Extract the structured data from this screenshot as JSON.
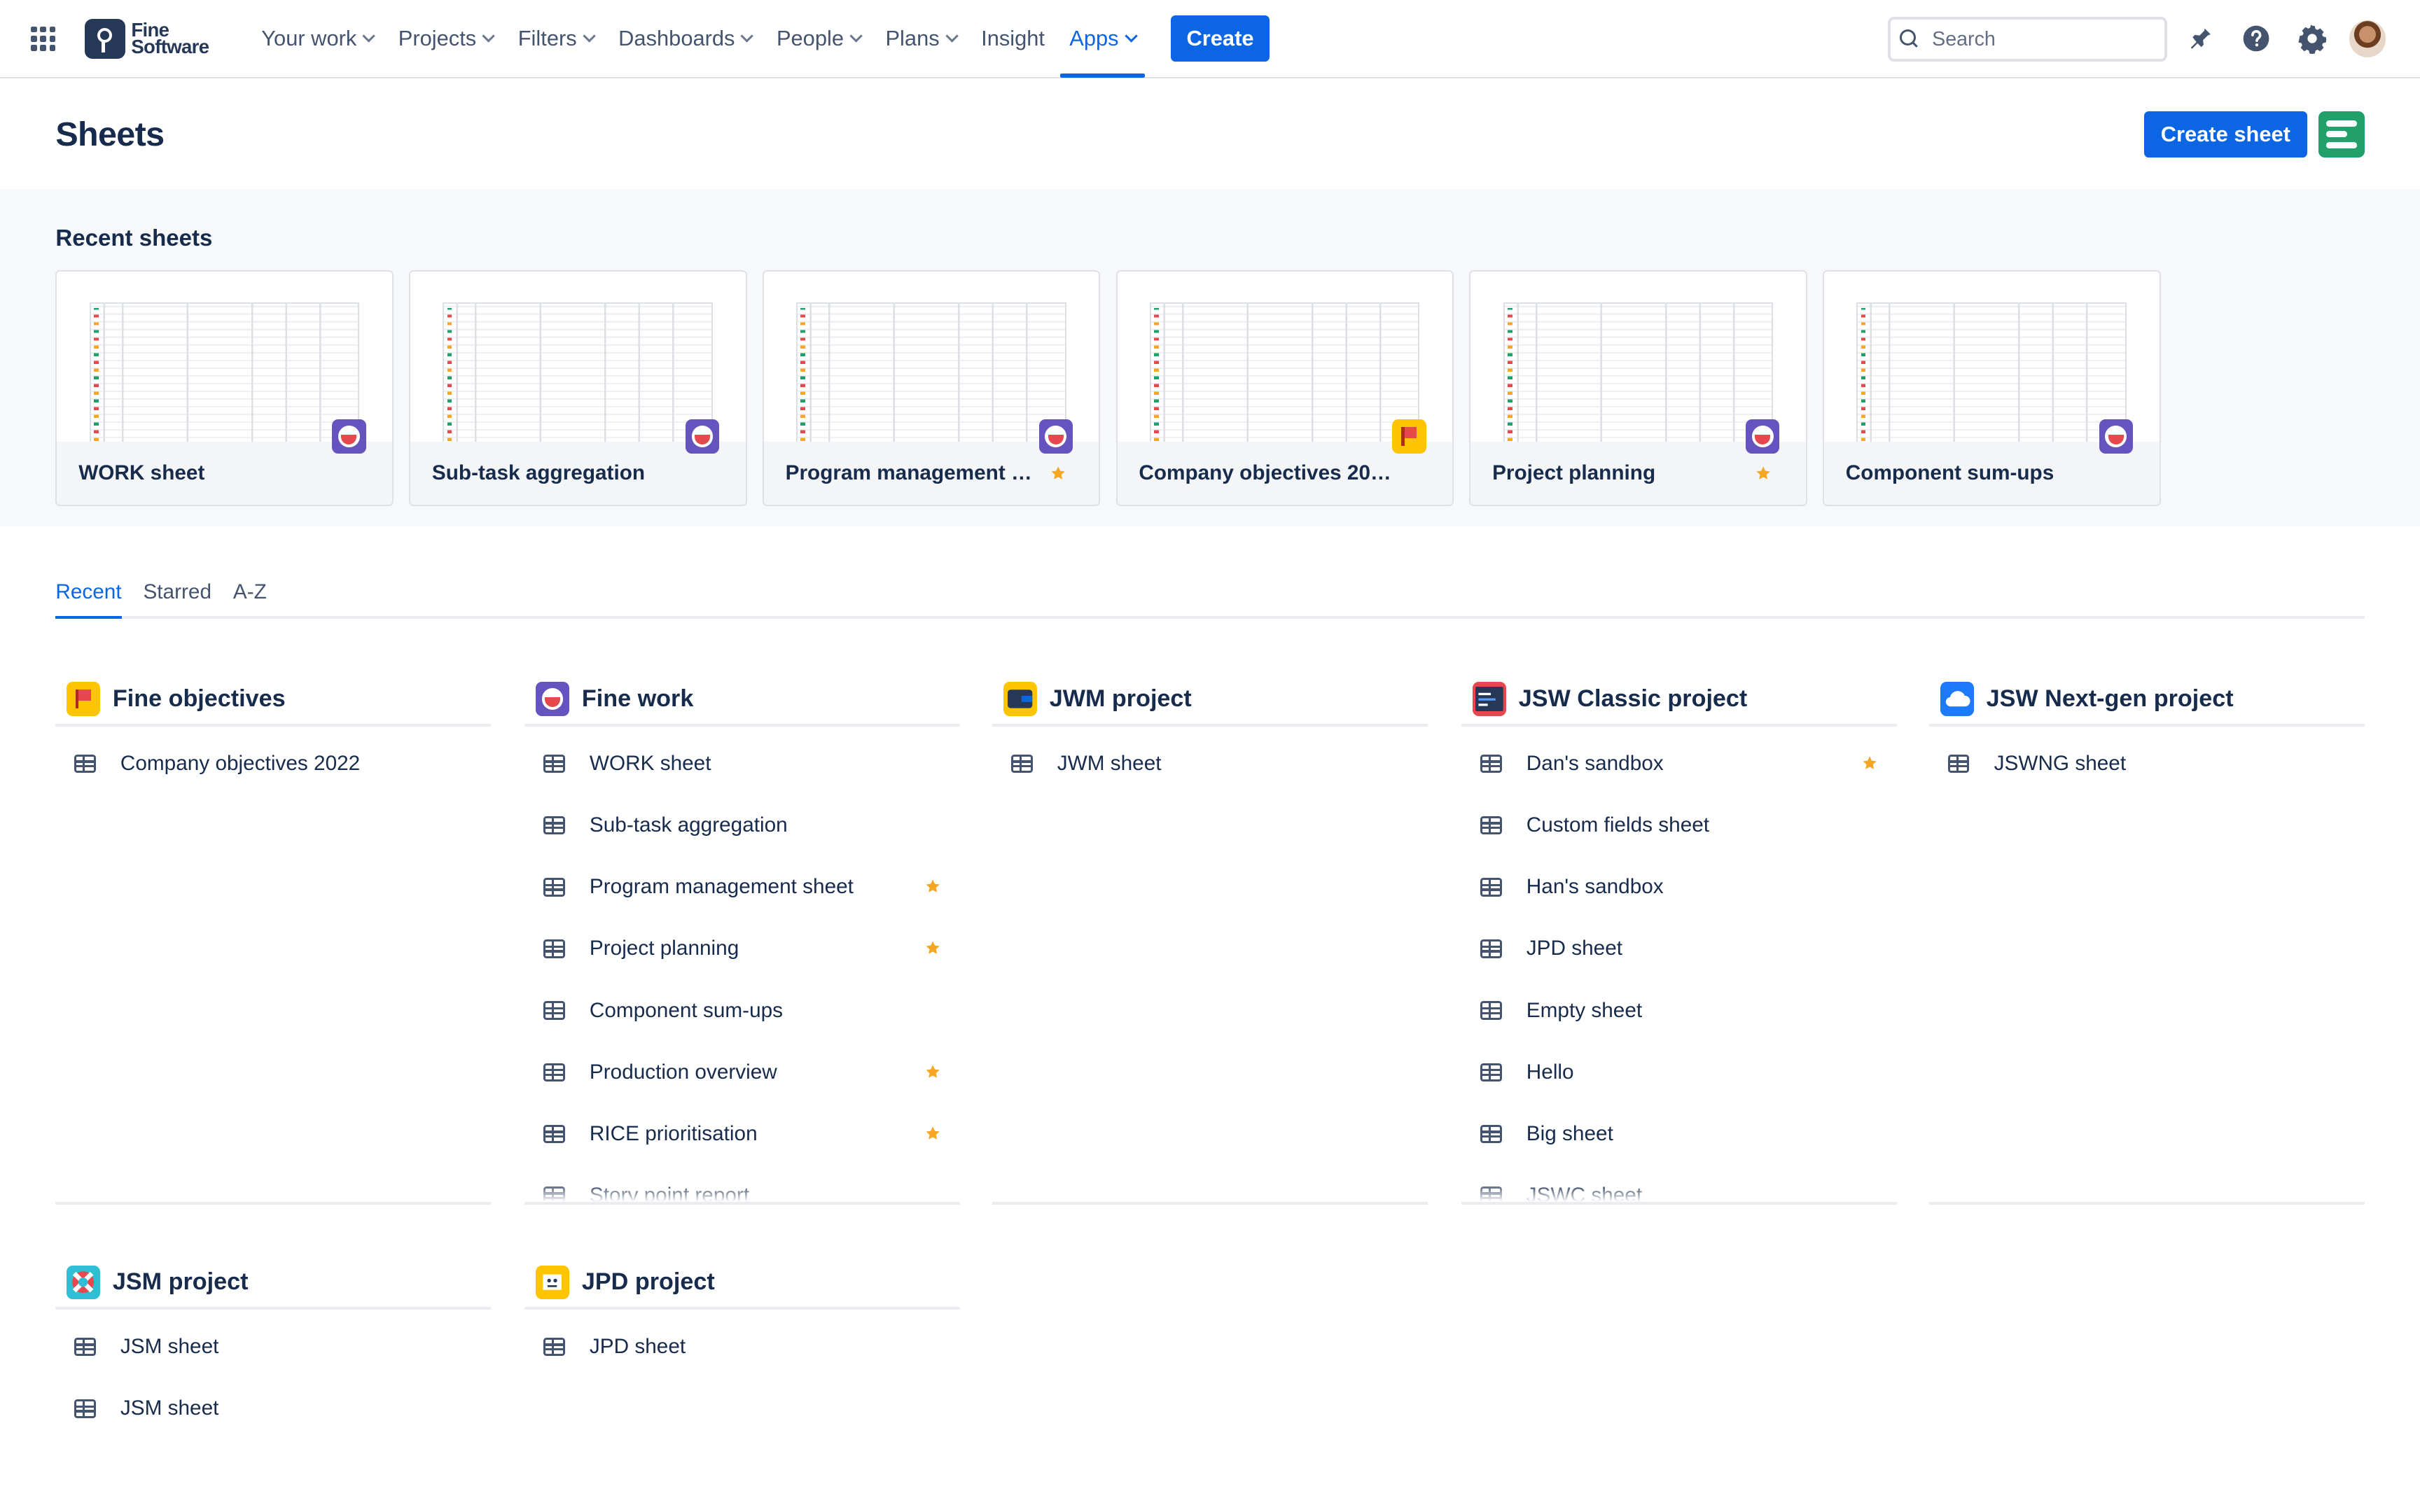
{
  "brand": {
    "name_line1": "Fine",
    "name_line2": "Software"
  },
  "nav": {
    "items": [
      {
        "label": "Your work",
        "dropdown": true
      },
      {
        "label": "Projects",
        "dropdown": true
      },
      {
        "label": "Filters",
        "dropdown": true
      },
      {
        "label": "Dashboards",
        "dropdown": true
      },
      {
        "label": "People",
        "dropdown": true
      },
      {
        "label": "Plans",
        "dropdown": true
      },
      {
        "label": "Insight",
        "dropdown": false
      },
      {
        "label": "Apps",
        "dropdown": true,
        "active": true
      }
    ],
    "create_label": "Create"
  },
  "search": {
    "placeholder": "Search"
  },
  "top_icons": [
    "notifications-icon",
    "help-icon",
    "settings-icon",
    "avatar"
  ],
  "page": {
    "title": "Sheets",
    "create_sheet_label": "Create sheet"
  },
  "recent": {
    "title": "Recent sheets",
    "cards": [
      {
        "name": "WORK sheet",
        "badge": "purple",
        "starred": false
      },
      {
        "name": "Sub-task aggregation",
        "badge": "purple",
        "starred": false
      },
      {
        "name": "Program management sh...",
        "badge": "purple",
        "starred": true
      },
      {
        "name": "Company objectives 2022",
        "badge": "yellow",
        "starred": false
      },
      {
        "name": "Project planning",
        "badge": "purple",
        "starred": true
      },
      {
        "name": "Component sum-ups",
        "badge": "purple",
        "starred": false
      }
    ]
  },
  "tabs": [
    {
      "label": "Recent",
      "active": true
    },
    {
      "label": "Starred"
    },
    {
      "label": "A-Z"
    }
  ],
  "groups": [
    {
      "title": "Fine objectives",
      "icon": "flag-icon",
      "items": [
        {
          "label": "Company objectives 2022"
        }
      ]
    },
    {
      "title": "Fine work",
      "icon": "potion-icon",
      "items": [
        {
          "label": "WORK sheet"
        },
        {
          "label": "Sub-task aggregation"
        },
        {
          "label": "Program management sheet",
          "starred": true
        },
        {
          "label": "Project planning",
          "starred": true
        },
        {
          "label": "Component sum-ups"
        },
        {
          "label": "Production overview",
          "starred": true
        },
        {
          "label": "RICE prioritisation",
          "starred": true
        },
        {
          "label": "Story point report"
        }
      ]
    },
    {
      "title": "JWM project",
      "icon": "wallet-icon",
      "items": [
        {
          "label": "JWM sheet"
        }
      ]
    },
    {
      "title": "JSW Classic project",
      "icon": "code-icon",
      "items": [
        {
          "label": "Dan's sandbox",
          "starred": true
        },
        {
          "label": "Custom fields sheet"
        },
        {
          "label": "Han's sandbox"
        },
        {
          "label": "JPD sheet"
        },
        {
          "label": "Empty sheet"
        },
        {
          "label": "Hello"
        },
        {
          "label": "Big sheet"
        },
        {
          "label": "JSWC sheet"
        }
      ]
    },
    {
      "title": "JSW Next-gen project",
      "icon": "cloud-icon",
      "items": [
        {
          "label": "JSWNG sheet"
        }
      ]
    },
    {
      "title": "JSM project",
      "icon": "lifebuoy-icon",
      "items": [
        {
          "label": "JSM sheet"
        },
        {
          "label": "JSM sheet"
        }
      ]
    },
    {
      "title": "JPD project",
      "icon": "idea-icon",
      "items": [
        {
          "label": "JPD sheet"
        }
      ]
    }
  ],
  "colors": {
    "accent": "#0c66e4",
    "star": "#f5a623",
    "text": "#172b4d"
  }
}
